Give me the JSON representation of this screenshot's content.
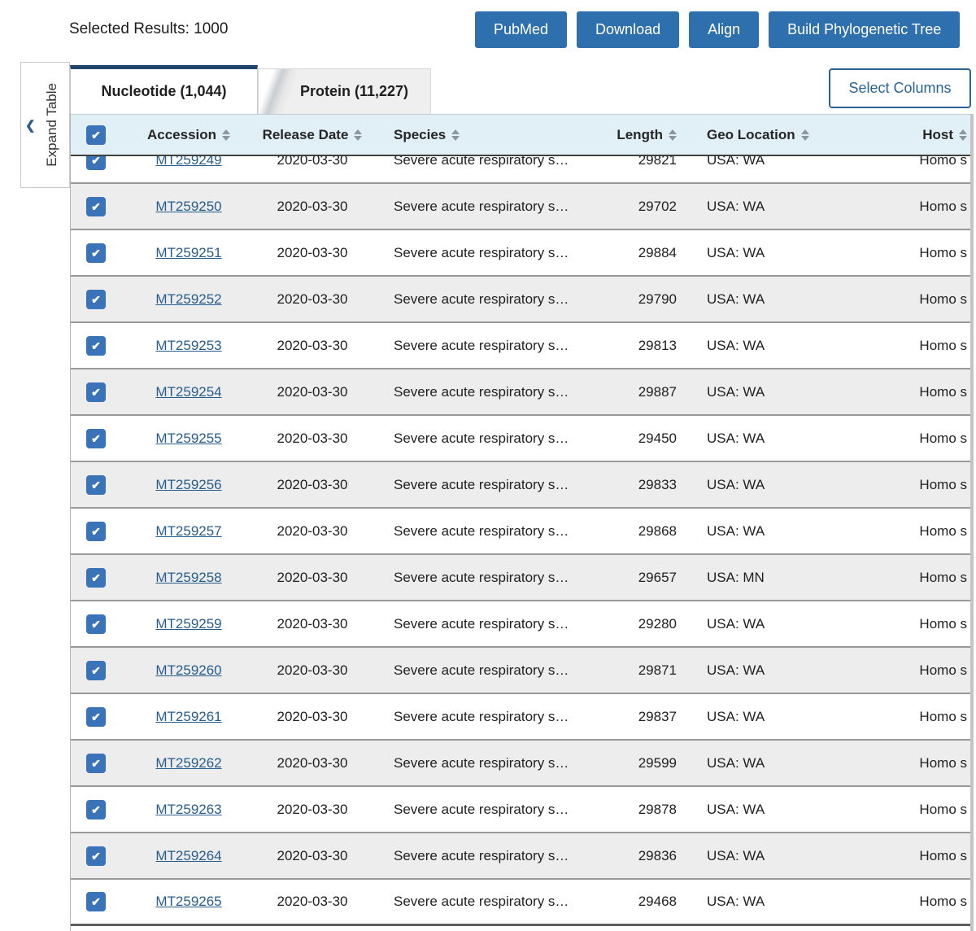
{
  "toolbar": {
    "selected_results_label": "Selected Results: 1000",
    "buttons": [
      {
        "label": "PubMed"
      },
      {
        "label": "Download"
      },
      {
        "label": "Align"
      },
      {
        "label": "Build Phylogenetic Tree"
      }
    ]
  },
  "tabs": {
    "nucleotide": {
      "label": "Nucleotide (1,044)",
      "active": true
    },
    "protein": {
      "label": "Protein (11,227)",
      "active": false
    }
  },
  "select_columns_label": "Select Columns",
  "expand_table_label": "Expand Table",
  "icons": {
    "checkmark": "✔",
    "chevron_left": "❮"
  },
  "colors": {
    "button_blue": "#2e70ad",
    "checkbox_blue": "#3b73b9",
    "link_blue": "#275d8c",
    "tab_accent_navy": "#22456e",
    "header_bg": "#e1eff6",
    "alt_row_bg": "#ededee",
    "outline_button_blue": "#2a6496"
  },
  "table": {
    "columns": [
      "Accession",
      "Release Date",
      "Species",
      "Length",
      "Geo Location",
      "Host"
    ],
    "rows": [
      {
        "accession": "MT259249",
        "release_date": "2020-03-30",
        "species": "Severe acute respiratory s…",
        "length": 29821,
        "geo_location": "USA: WA",
        "host": "Homo s"
      },
      {
        "accession": "MT259250",
        "release_date": "2020-03-30",
        "species": "Severe acute respiratory s…",
        "length": 29702,
        "geo_location": "USA: WA",
        "host": "Homo s"
      },
      {
        "accession": "MT259251",
        "release_date": "2020-03-30",
        "species": "Severe acute respiratory s…",
        "length": 29884,
        "geo_location": "USA: WA",
        "host": "Homo s"
      },
      {
        "accession": "MT259252",
        "release_date": "2020-03-30",
        "species": "Severe acute respiratory s…",
        "length": 29790,
        "geo_location": "USA: WA",
        "host": "Homo s"
      },
      {
        "accession": "MT259253",
        "release_date": "2020-03-30",
        "species": "Severe acute respiratory s…",
        "length": 29813,
        "geo_location": "USA: WA",
        "host": "Homo s"
      },
      {
        "accession": "MT259254",
        "release_date": "2020-03-30",
        "species": "Severe acute respiratory s…",
        "length": 29887,
        "geo_location": "USA: WA",
        "host": "Homo s"
      },
      {
        "accession": "MT259255",
        "release_date": "2020-03-30",
        "species": "Severe acute respiratory s…",
        "length": 29450,
        "geo_location": "USA: WA",
        "host": "Homo s"
      },
      {
        "accession": "MT259256",
        "release_date": "2020-03-30",
        "species": "Severe acute respiratory s…",
        "length": 29833,
        "geo_location": "USA: WA",
        "host": "Homo s"
      },
      {
        "accession": "MT259257",
        "release_date": "2020-03-30",
        "species": "Severe acute respiratory s…",
        "length": 29868,
        "geo_location": "USA: WA",
        "host": "Homo s"
      },
      {
        "accession": "MT259258",
        "release_date": "2020-03-30",
        "species": "Severe acute respiratory s…",
        "length": 29657,
        "geo_location": "USA: MN",
        "host": "Homo s"
      },
      {
        "accession": "MT259259",
        "release_date": "2020-03-30",
        "species": "Severe acute respiratory s…",
        "length": 29280,
        "geo_location": "USA: WA",
        "host": "Homo s"
      },
      {
        "accession": "MT259260",
        "release_date": "2020-03-30",
        "species": "Severe acute respiratory s…",
        "length": 29871,
        "geo_location": "USA: WA",
        "host": "Homo s"
      },
      {
        "accession": "MT259261",
        "release_date": "2020-03-30",
        "species": "Severe acute respiratory s…",
        "length": 29837,
        "geo_location": "USA: WA",
        "host": "Homo s"
      },
      {
        "accession": "MT259262",
        "release_date": "2020-03-30",
        "species": "Severe acute respiratory s…",
        "length": 29599,
        "geo_location": "USA: WA",
        "host": "Homo s"
      },
      {
        "accession": "MT259263",
        "release_date": "2020-03-30",
        "species": "Severe acute respiratory s…",
        "length": 29878,
        "geo_location": "USA: WA",
        "host": "Homo s"
      },
      {
        "accession": "MT259264",
        "release_date": "2020-03-30",
        "species": "Severe acute respiratory s…",
        "length": 29836,
        "geo_location": "USA: WA",
        "host": "Homo s"
      },
      {
        "accession": "MT259265",
        "release_date": "2020-03-30",
        "species": "Severe acute respiratory s…",
        "length": 29468,
        "geo_location": "USA: WA",
        "host": "Homo s"
      }
    ]
  }
}
